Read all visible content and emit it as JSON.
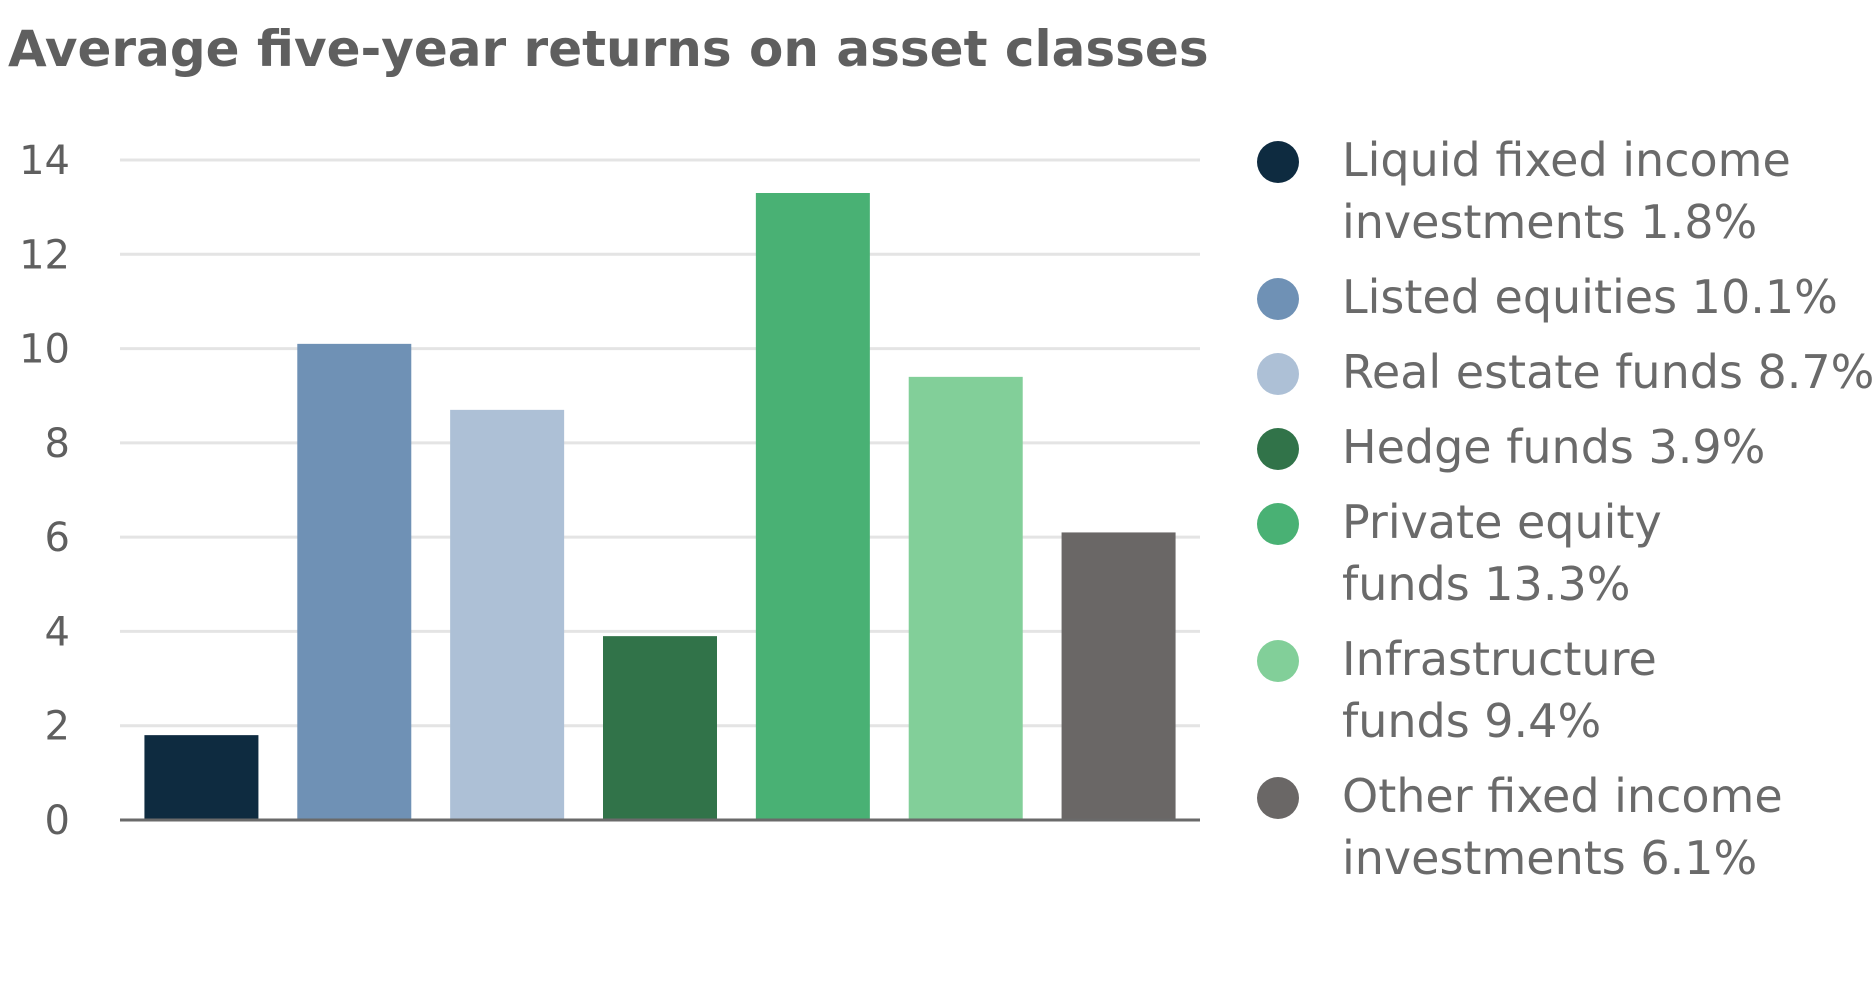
{
  "chart_data": {
    "type": "bar",
    "title": "Average five-year returns on asset classes",
    "xlabel": "",
    "ylabel": "",
    "ylim": [
      0,
      14
    ],
    "yticks": [
      0,
      2,
      4,
      6,
      8,
      10,
      12,
      14
    ],
    "grid": true,
    "legend_position": "right",
    "categories": [
      "Liquid fixed income investments",
      "Listed equities",
      "Real estate funds",
      "Hedge funds",
      "Private equity funds",
      "Infrastructure funds",
      "Other fixed income investments"
    ],
    "values": [
      1.8,
      10.1,
      8.7,
      3.9,
      13.3,
      9.4,
      6.1
    ],
    "colors": [
      "#0e2b40",
      "#6f91b5",
      "#adc0d6",
      "#317349",
      "#49b174",
      "#82cf99",
      "#6a6766"
    ],
    "legend": [
      {
        "lines": [
          "Liquid fixed income",
          "investments 1.8%"
        ]
      },
      {
        "lines": [
          "Listed equities 10.1%"
        ]
      },
      {
        "lines": [
          "Real estate funds 8.7%"
        ]
      },
      {
        "lines": [
          "Hedge funds 3.9%"
        ]
      },
      {
        "lines": [
          "Private equity",
          "funds 13.3%"
        ]
      },
      {
        "lines": [
          "Infrastructure",
          "funds 9.4%"
        ]
      },
      {
        "lines": [
          "Other fixed income",
          "investments 6.1%"
        ]
      }
    ]
  }
}
